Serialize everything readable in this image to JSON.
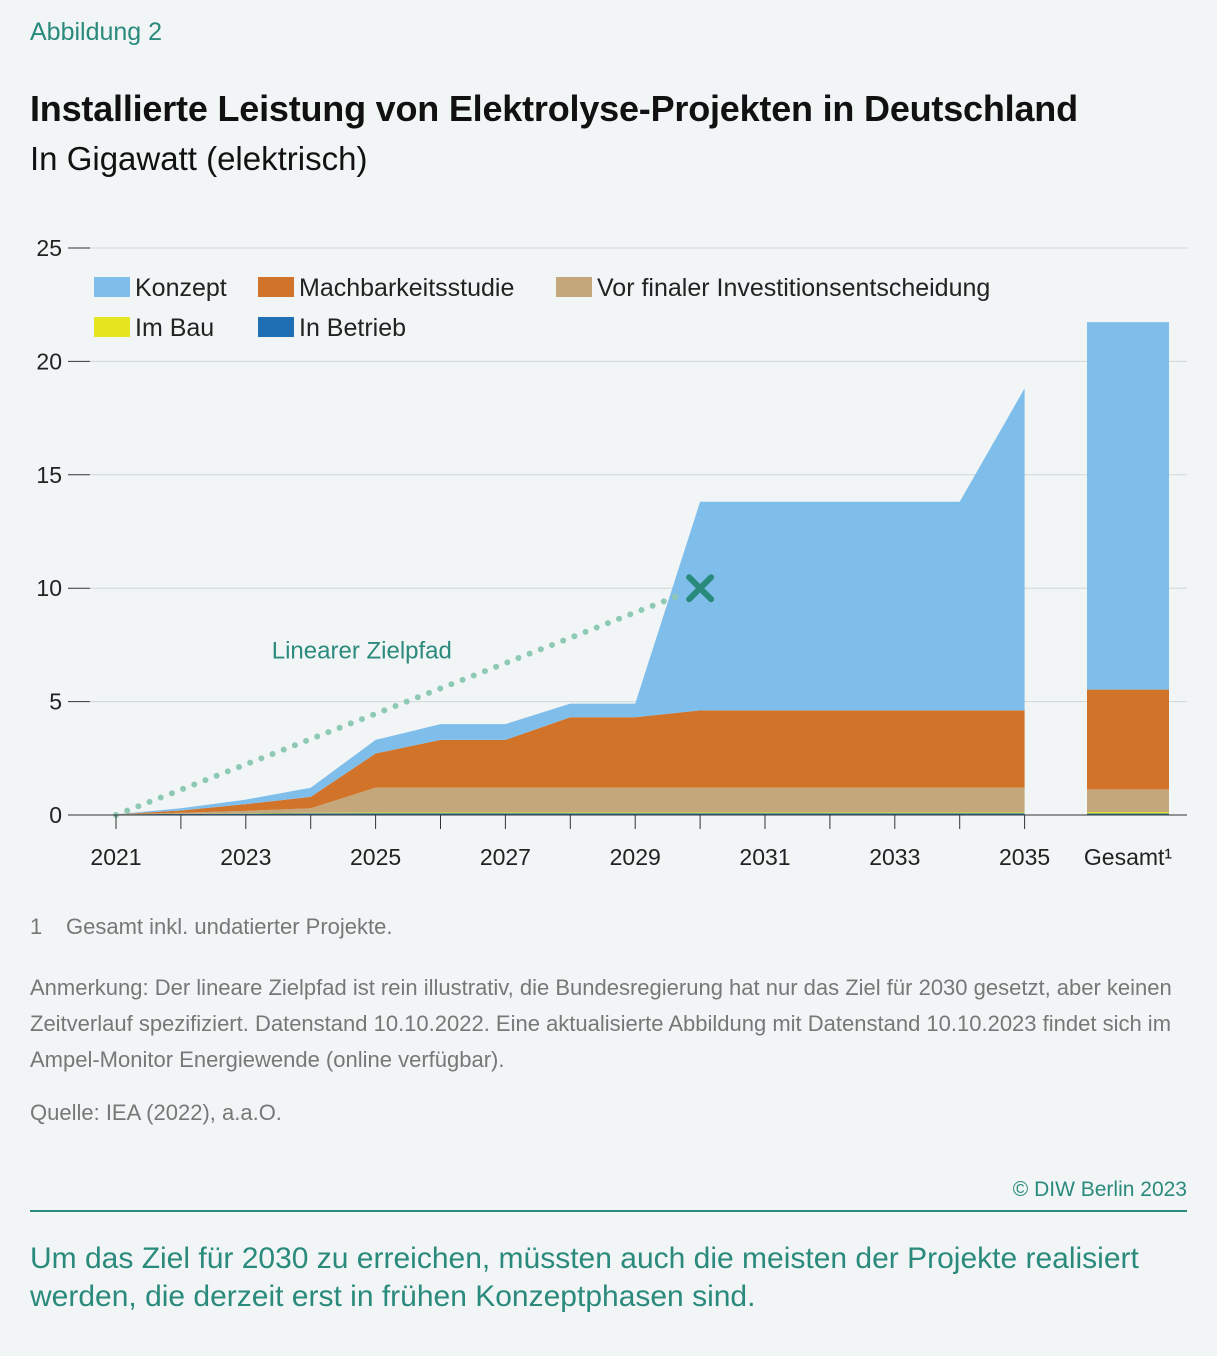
{
  "header": {
    "figure_label": "Abbildung 2",
    "title": "Installierte Leistung von Elektrolyse-Projekten in Deutschland",
    "subtitle": "In Gigawatt (elektrisch)"
  },
  "colors": {
    "konzept": "#7fbeeb",
    "machbarkeitsstudie": "#d2732a",
    "vor_fid": "#c4a77a",
    "im_bau": "#e6e620",
    "in_betrieb": "#1f6fb5",
    "zielpfad": "#8ec9b3",
    "marker": "#2a8a7c",
    "accent": "#2a8a7c"
  },
  "chart_data": {
    "type": "area",
    "x": [
      2021,
      2022,
      2023,
      2024,
      2025,
      2026,
      2027,
      2028,
      2029,
      2030,
      2031,
      2032,
      2033,
      2034,
      2035
    ],
    "x_tick_labels": [
      "2021",
      "2023",
      "2025",
      "2027",
      "2029",
      "2031",
      "2033",
      "2035",
      "Gesamt¹"
    ],
    "y_tick_labels": [
      "0",
      "5",
      "10",
      "15",
      "20",
      "25"
    ],
    "ylim": [
      0,
      25
    ],
    "grid": true,
    "legend_position": "top-left",
    "stacked": true,
    "series": [
      {
        "name": "In Betrieb",
        "color_key": "in_betrieb",
        "values": [
          0.03,
          0.05,
          0.06,
          0.07,
          0.08,
          0.08,
          0.08,
          0.08,
          0.08,
          0.08,
          0.08,
          0.08,
          0.08,
          0.08,
          0.08
        ]
      },
      {
        "name": "Im Bau",
        "color_key": "im_bau",
        "values": [
          0,
          0,
          0.02,
          0.03,
          0.03,
          0.03,
          0.03,
          0.03,
          0.03,
          0.03,
          0.03,
          0.03,
          0.03,
          0.03,
          0.03
        ]
      },
      {
        "name": "Vor finaler Investitionsentscheidung",
        "color_key": "vor_fid",
        "values": [
          0,
          0.05,
          0.1,
          0.2,
          1.1,
          1.1,
          1.1,
          1.1,
          1.1,
          1.1,
          1.1,
          1.1,
          1.1,
          1.1,
          1.1
        ]
      },
      {
        "name": "Machbarkeitsstudie",
        "color_key": "machbarkeitsstudie",
        "values": [
          0,
          0.1,
          0.3,
          0.5,
          1.5,
          2.1,
          2.1,
          3.1,
          3.1,
          3.4,
          3.4,
          3.4,
          3.4,
          3.4,
          3.4
        ]
      },
      {
        "name": "Konzept",
        "color_key": "konzept",
        "values": [
          0,
          0.1,
          0.2,
          0.4,
          0.6,
          0.7,
          0.7,
          0.6,
          0.6,
          9.2,
          9.2,
          9.2,
          9.2,
          9.2,
          14.2
        ]
      }
    ],
    "total_bar": {
      "label": "Gesamt¹",
      "values": {
        "In Betrieb": 0.1,
        "Im Bau": 0.03,
        "Vor finaler Investitionsentscheidung": 1.0,
        "Machbarkeitsstudie": 4.4,
        "Konzept": 16.2
      }
    },
    "target_path": {
      "label": "Linearer Zielpfad",
      "points": [
        [
          2021,
          0
        ],
        [
          2030,
          10
        ]
      ]
    },
    "target_marker": {
      "x": 2030,
      "y": 10
    }
  },
  "footnote": {
    "number": "1",
    "text": "Gesamt inkl. undatierter Projekte."
  },
  "note": "Anmerkung: Der lineare Zielpfad ist rein illustrativ, die Bundesregierung hat nur das Ziel für 2030 gesetzt, aber keinen Zeitverlauf spezifiziert. Datenstand 10.10.2022. Eine aktualisierte Abbildung mit Datenstand 10.10.2023 findet sich im Ampel-Monitor Energiewende (online verfügbar).",
  "source": "Quelle: IEA (2022), a.a.O.",
  "copyright": "© DIW Berlin 2023",
  "takeaway": "Um das Ziel für 2030 zu erreichen, müssten auch die meisten der Projekte realisiert werden, die derzeit erst in frühen Konzeptphasen sind."
}
